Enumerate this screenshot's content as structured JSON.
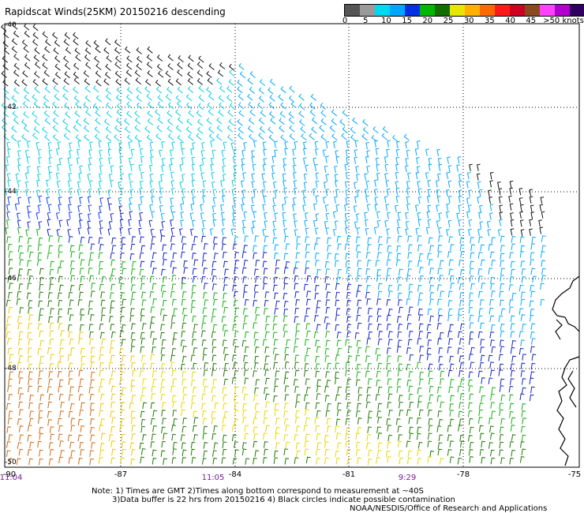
{
  "title": "Rapidscat Winds(25KM) 20150216 descending",
  "colorbar": {
    "colors": [
      "#555555",
      "#9a9a9a",
      "#00d8f0",
      "#00a6ff",
      "#0030e6",
      "#00b800",
      "#136d00",
      "#e6e600",
      "#ffb000",
      "#ff6a00",
      "#ff1a1a",
      "#d00020",
      "#8a4a20",
      "#ff40ff",
      "#b000d0",
      "#300060"
    ],
    "labels": [
      "0",
      "5",
      "10",
      "15",
      "20",
      "25",
      "30",
      "35",
      "40",
      "45",
      ">50 knots"
    ]
  },
  "lat_labels": [
    "-40",
    "-42",
    "-44",
    "-46",
    "-48",
    "-50"
  ],
  "lon_labels": [
    "-90",
    "-87",
    "-84",
    "-81",
    "-78",
    "-75"
  ],
  "time_labels": [
    "11:04",
    "11:05",
    "9:29"
  ],
  "notes": {
    "line1": "Note: 1) Times are GMT  2)Times along bottom correspond to measurement at ~40S",
    "line2": "3)Data buffer is 22 hrs from 20150216  4) Black circles indicate possible contamination",
    "credit": "NOAA/NESDIS/Office of Research and Applications"
  }
}
